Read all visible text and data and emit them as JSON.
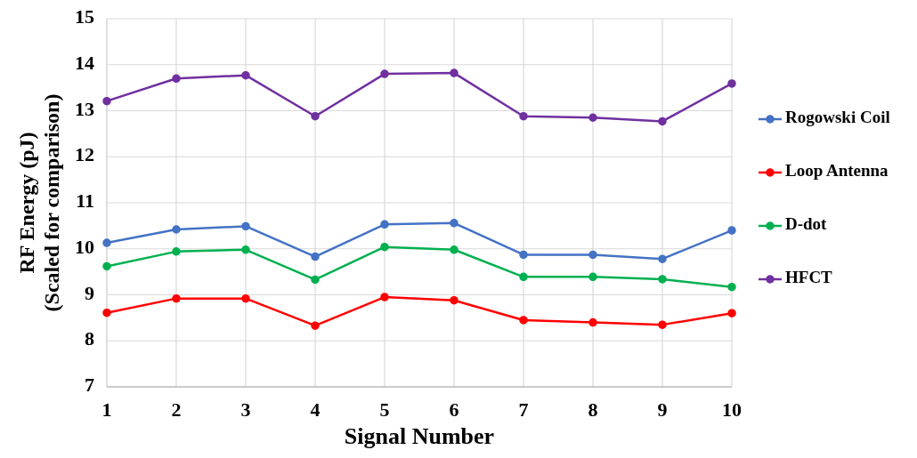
{
  "chart_data": {
    "type": "line",
    "xlabel": "Signal Number",
    "ylabel": "RF Energy (pJ)\n(Scaled for comparison)",
    "x": [
      1,
      2,
      3,
      4,
      5,
      6,
      7,
      8,
      9,
      10
    ],
    "series": [
      {
        "name": "Rogowski Coil",
        "color": "#4472c4",
        "values": [
          10.13,
          10.42,
          10.49,
          9.83,
          10.53,
          10.56,
          9.87,
          9.87,
          9.78,
          10.4
        ]
      },
      {
        "name": "Loop Antenna",
        "color": "#ff0000",
        "values": [
          8.61,
          8.92,
          8.92,
          8.33,
          8.95,
          8.88,
          8.45,
          8.4,
          8.35,
          8.6
        ]
      },
      {
        "name": "D-dot",
        "color": "#00b050",
        "values": [
          9.62,
          9.94,
          9.98,
          9.33,
          10.04,
          9.98,
          9.39,
          9.39,
          9.34,
          9.17
        ]
      },
      {
        "name": "HFCT",
        "color": "#7030a0",
        "values": [
          13.21,
          13.7,
          13.77,
          12.88,
          13.8,
          13.82,
          12.88,
          12.85,
          12.77,
          13.59
        ]
      }
    ],
    "xlim": [
      1,
      10
    ],
    "xticks": [
      1,
      2,
      3,
      4,
      5,
      6,
      7,
      8,
      9,
      10
    ],
    "ylim": [
      7,
      15
    ],
    "yticks": [
      7,
      8,
      9,
      10,
      11,
      12,
      13,
      14,
      15
    ],
    "grid": true,
    "legend": "right",
    "marker": "circle",
    "line_style": "solid"
  }
}
